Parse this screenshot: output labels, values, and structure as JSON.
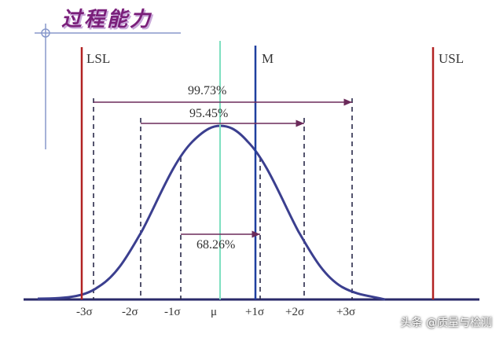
{
  "title": "过程能力",
  "watermark": "头条 @质量与检测",
  "limits": {
    "lsl": "LSL",
    "usl": "USL",
    "m": "M"
  },
  "percent_labels": {
    "p3": "99.73%",
    "p2": "95.45%",
    "p1": "68.26%"
  },
  "axis_ticks": [
    "-3σ",
    "-2σ",
    "-1σ",
    "μ",
    "+1σ",
    "+2σ",
    "+3σ"
  ],
  "colors": {
    "title": "#7a1f7a",
    "curve": "#3b3f8f",
    "limit_lines": "#b22222",
    "mean_line": "#7fe0c0",
    "m_line": "#1f3f9f",
    "bracket": "#6b2a5a"
  }
}
